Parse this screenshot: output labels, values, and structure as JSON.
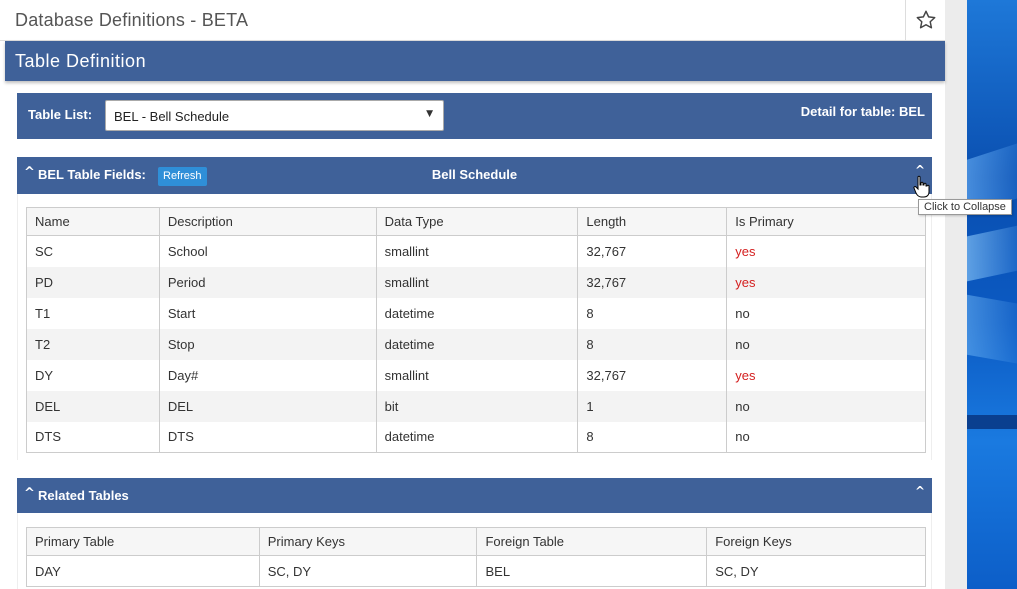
{
  "app": {
    "title": "Database Definitions - BETA"
  },
  "section": {
    "title": "Table Definition"
  },
  "table_list": {
    "label": "Table List:",
    "selected": "BEL - Bell Schedule",
    "detail": "Detail for table: BEL"
  },
  "fields_panel": {
    "caret": "^",
    "title": "BEL Table Fields:",
    "refresh_label": "Refresh",
    "center_title": "Bell Schedule",
    "collapse_glyph": "^",
    "tooltip": "Click to Collapse",
    "columns": [
      "Name",
      "Description",
      "Data Type",
      "Length",
      "Is Primary"
    ],
    "rows": [
      [
        "SC",
        "School",
        "smallint",
        "32,767",
        "yes"
      ],
      [
        "PD",
        "Period",
        "smallint",
        "32,767",
        "yes"
      ],
      [
        "T1",
        "Start",
        "datetime",
        "8",
        "no"
      ],
      [
        "T2",
        "Stop",
        "datetime",
        "8",
        "no"
      ],
      [
        "DY",
        "Day#",
        "smallint",
        "32,767",
        "yes"
      ],
      [
        "DEL",
        "DEL",
        "bit",
        "1",
        "no"
      ],
      [
        "DTS",
        "DTS",
        "datetime",
        "8",
        "no"
      ]
    ]
  },
  "related_panel": {
    "caret": "^",
    "title": "Related Tables",
    "collapse_glyph": "^",
    "columns": [
      "Primary Table",
      "Primary Keys",
      "Foreign Table",
      "Foreign Keys"
    ],
    "rows": [
      [
        "DAY",
        "SC, DY",
        "BEL",
        "SC, DY"
      ]
    ]
  },
  "colors": {
    "header_blue": "#3f6199",
    "refresh_blue": "#2f8fd8",
    "yes_red": "#d42020"
  },
  "icons": {
    "favorite": "star-icon",
    "cursor": "hand-cursor-icon"
  }
}
